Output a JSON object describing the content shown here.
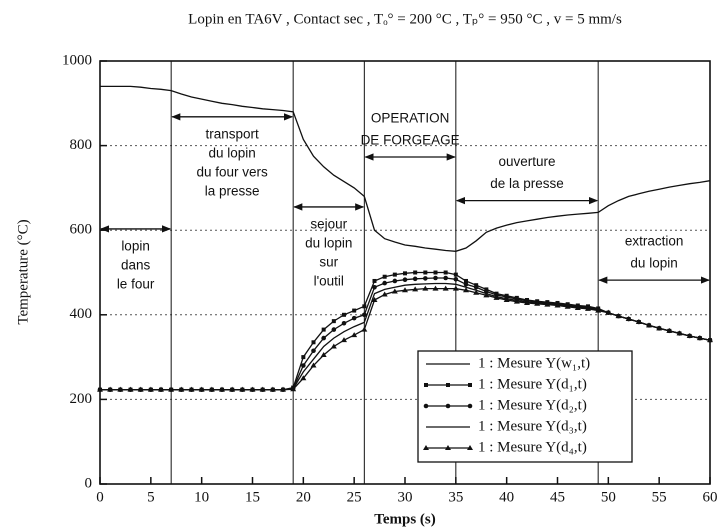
{
  "chart_data": {
    "type": "line",
    "title": "Lopin en TA6V , Contact sec , Tₒ° = 200 °C , Tₚ° = 950 °C , v = 5 mm/s",
    "x_label": "Temps  (s)",
    "y_label": "Temperature (°C)",
    "xlim": [
      0,
      60
    ],
    "xticks": [
      0,
      5,
      10,
      15,
      20,
      25,
      30,
      35,
      40,
      45,
      50,
      55,
      60
    ],
    "ylim": [
      0,
      1000
    ],
    "yticks": [
      0,
      200,
      400,
      600,
      800,
      1000
    ],
    "grid": true,
    "legend": "lower right",
    "phase_lines": [
      7,
      19,
      26,
      35,
      49
    ],
    "annotations": [
      {
        "lines": [
          "lopin",
          "dans",
          "le four"
        ],
        "span": [
          0,
          7
        ],
        "y": 603,
        "position": "below"
      },
      {
        "lines": [
          "transport",
          "du lopin",
          "du four vers",
          "la presse"
        ],
        "span": [
          7,
          19
        ],
        "y": 868,
        "position": "below"
      },
      {
        "lines": [
          "sejour",
          "du lopin",
          "sur",
          "l'outil"
        ],
        "span": [
          19,
          26
        ],
        "y": 655,
        "position": "below"
      },
      {
        "lines": [
          "OPERATION",
          "DE FORGEAGE"
        ],
        "span": [
          26,
          35
        ],
        "y": 773,
        "position": "above"
      },
      {
        "lines": [
          "ouverture",
          "de la presse"
        ],
        "span": [
          35,
          49
        ],
        "y": 670,
        "position": "above"
      },
      {
        "lines": [
          "extraction",
          "du lopin"
        ],
        "span": [
          49,
          60
        ],
        "y": 482,
        "position": "above"
      }
    ],
    "x": [
      0,
      1,
      2,
      3,
      4,
      5,
      6,
      7,
      8,
      9,
      10,
      11,
      12,
      13,
      14,
      15,
      16,
      17,
      18,
      19,
      20,
      21,
      22,
      23,
      24,
      25,
      26,
      27,
      28,
      29,
      30,
      31,
      32,
      33,
      34,
      35,
      36,
      37,
      38,
      39,
      40,
      41,
      42,
      43,
      44,
      45,
      46,
      47,
      48,
      49,
      50,
      51,
      52,
      53,
      54,
      55,
      56,
      57,
      58,
      59,
      60
    ],
    "series": [
      {
        "name": "1 : Mesure Y(w₁,t)",
        "color": "#111",
        "marker": "none",
        "values": [
          940,
          940,
          940,
          940,
          938,
          935,
          933,
          930,
          922,
          915,
          910,
          905,
          900,
          897,
          893,
          890,
          887,
          885,
          883,
          880,
          815,
          775,
          750,
          730,
          715,
          700,
          680,
          600,
          580,
          572,
          565,
          562,
          558,
          555,
          552,
          550,
          558,
          575,
          595,
          605,
          612,
          618,
          622,
          626,
          630,
          633,
          636,
          638,
          640,
          642,
          658,
          670,
          680,
          686,
          692,
          697,
          702,
          706,
          710,
          713,
          717
        ]
      },
      {
        "name": "1 : Mesure Y(d₁,t)",
        "color": "#111",
        "marker": "square",
        "values": [
          223,
          223,
          223,
          223,
          223,
          223,
          223,
          223,
          223,
          223,
          223,
          223,
          223,
          223,
          223,
          223,
          223,
          223,
          223,
          228,
          300,
          335,
          365,
          385,
          400,
          410,
          420,
          480,
          490,
          495,
          498,
          500,
          500,
          500,
          500,
          495,
          480,
          470,
          460,
          450,
          445,
          440,
          435,
          432,
          430,
          428,
          425,
          422,
          420,
          415,
          405,
          397,
          390,
          383,
          375,
          368,
          362,
          356,
          350,
          345,
          340
        ]
      },
      {
        "name": "1 : Mesure Y(d₂,t)",
        "color": "#111",
        "marker": "circle",
        "values": [
          223,
          223,
          223,
          223,
          223,
          223,
          223,
          223,
          223,
          223,
          223,
          223,
          223,
          223,
          223,
          223,
          223,
          223,
          223,
          226,
          280,
          315,
          345,
          365,
          380,
          392,
          400,
          465,
          475,
          480,
          483,
          485,
          486,
          487,
          487,
          484,
          472,
          465,
          455,
          447,
          442,
          437,
          433,
          430,
          428,
          426,
          423,
          420,
          418,
          413,
          405,
          397,
          390,
          383,
          375,
          368,
          362,
          356,
          350,
          345,
          340
        ]
      },
      {
        "name": "1 : Mesure Y(d₃,t)",
        "color": "#111",
        "marker": "none",
        "values": [
          223,
          223,
          223,
          223,
          223,
          223,
          223,
          223,
          223,
          223,
          223,
          223,
          223,
          223,
          223,
          223,
          223,
          223,
          223,
          225,
          265,
          295,
          325,
          345,
          360,
          372,
          382,
          450,
          460,
          465,
          470,
          472,
          473,
          474,
          474,
          472,
          465,
          458,
          450,
          443,
          438,
          434,
          430,
          428,
          426,
          424,
          421,
          418,
          416,
          412,
          405,
          397,
          390,
          383,
          375,
          368,
          362,
          356,
          350,
          345,
          340
        ]
      },
      {
        "name": "1 : Mesure Y(d₄,t)",
        "color": "#111",
        "marker": "triangle",
        "values": [
          223,
          223,
          223,
          223,
          223,
          223,
          223,
          223,
          223,
          223,
          223,
          223,
          223,
          223,
          223,
          223,
          223,
          223,
          223,
          224,
          250,
          280,
          305,
          325,
          340,
          352,
          365,
          435,
          448,
          455,
          458,
          460,
          462,
          462,
          462,
          462,
          458,
          452,
          446,
          440,
          435,
          431,
          428,
          426,
          424,
          422,
          419,
          416,
          414,
          410,
          405,
          397,
          390,
          383,
          375,
          368,
          362,
          356,
          350,
          345,
          340
        ]
      }
    ]
  }
}
